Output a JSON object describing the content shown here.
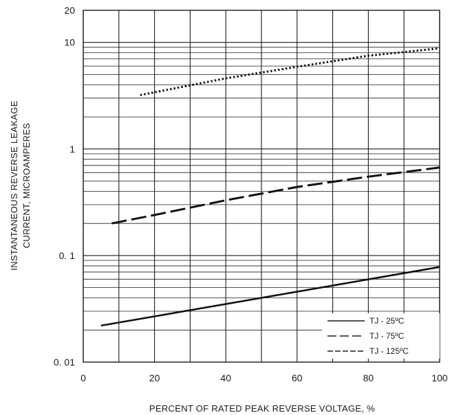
{
  "chart_data": {
    "type": "line",
    "title": "",
    "xlabel": "PERCENT  OF  RATED  PEAK  REVERSE  VOLTAGE, %",
    "ylabel_line1": "INSTANTANEOUS  REVERSE  LEAKAGE",
    "ylabel_line2": "CURRENT,  MICROAMPERES",
    "xlim": [
      0,
      100
    ],
    "ylim": [
      0.01,
      20
    ],
    "y_scale": "log",
    "x_ticks": [
      {
        "value": 0,
        "label": "0"
      },
      {
        "value": 20,
        "label": "20"
      },
      {
        "value": 40,
        "label": "40"
      },
      {
        "value": 60,
        "label": "60"
      },
      {
        "value": 80,
        "label": "80"
      },
      {
        "value": 100,
        "label": "100"
      }
    ],
    "y_ticks": [
      {
        "value": 0.01,
        "label": "0. 01"
      },
      {
        "value": 0.1,
        "label": "0. 1"
      },
      {
        "value": 1,
        "label": "1"
      },
      {
        "value": 10,
        "label": "10"
      },
      {
        "value": 20,
        "label": "20"
      }
    ],
    "grid": true,
    "legend_position": "bottom-right",
    "series": [
      {
        "name": "TJ  -  25ºC",
        "style": "solid",
        "x": [
          5,
          100
        ],
        "y": [
          0.022,
          0.078
        ]
      },
      {
        "name": "TJ  -  75ºC",
        "style": "dashed",
        "x": [
          8,
          20,
          40,
          60,
          80,
          100
        ],
        "y": [
          0.2,
          0.24,
          0.33,
          0.44,
          0.55,
          0.67
        ]
      },
      {
        "name": "TJ  -  125ºC",
        "style": "dotted",
        "x": [
          16,
          40,
          60,
          80,
          100
        ],
        "y": [
          3.2,
          4.6,
          5.9,
          7.5,
          8.8
        ]
      }
    ]
  }
}
